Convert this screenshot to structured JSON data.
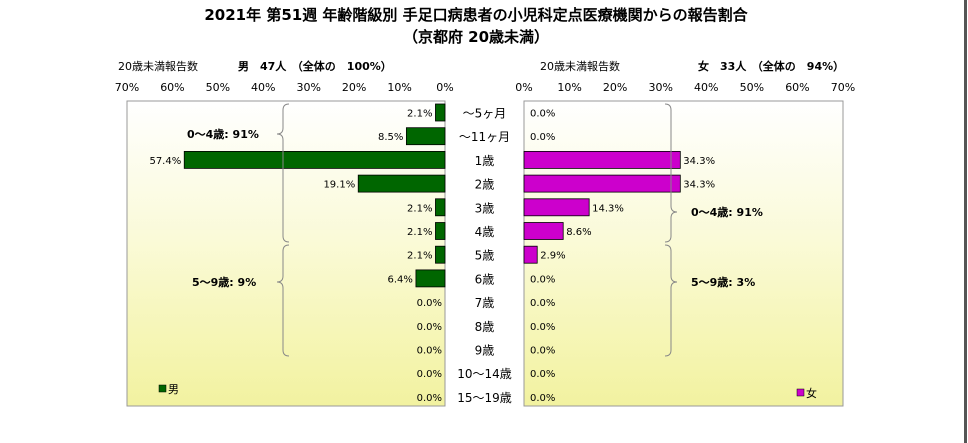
{
  "chart_data": {
    "type": "bar",
    "title": "2021年 第51週 年齢階級別 手足口病患者の小児科定点医療機関からの報告割合",
    "subtitle": "（京都府 20歳未満）",
    "categories": [
      "～5ヶ月",
      "～11ヶ月",
      "1歳",
      "2歳",
      "3歳",
      "4歳",
      "5歳",
      "6歳",
      "7歳",
      "8歳",
      "9歳",
      "10～14歳",
      "15～19歳"
    ],
    "xlim": [
      0,
      70
    ],
    "ticks": [
      "70%",
      "60%",
      "50%",
      "40%",
      "30%",
      "20%",
      "10%",
      "0%"
    ],
    "ticks_right": [
      "0%",
      "10%",
      "20%",
      "30%",
      "40%",
      "50%",
      "60%",
      "70%"
    ],
    "series": [
      {
        "name": "男",
        "color": "#006600",
        "header_label": "20歳未満報告数",
        "header_summary": "男　47人　（全体の　100%）",
        "values": [
          2.1,
          8.5,
          57.4,
          19.1,
          2.1,
          2.1,
          2.1,
          6.4,
          0.0,
          0.0,
          0.0,
          0.0,
          0.0
        ],
        "labels": [
          "2.1%",
          "8.5%",
          "57.4%",
          "19.1%",
          "2.1%",
          "2.1%",
          "2.1%",
          "6.4%",
          "0.0%",
          "0.0%",
          "0.0%",
          "0.0%",
          "0.0%"
        ],
        "group_labels": [
          "0～4歳: 91%",
          "5～9歳: 9%"
        ]
      },
      {
        "name": "女",
        "color": "#cc00cc",
        "header_label": "20歳未満報告数",
        "header_summary": "女　33人　（全体の　94%）",
        "values": [
          0.0,
          0.0,
          34.3,
          34.3,
          14.3,
          8.6,
          2.9,
          0.0,
          0.0,
          0.0,
          0.0,
          0.0,
          0.0
        ],
        "labels": [
          "0.0%",
          "0.0%",
          "34.3%",
          "34.3%",
          "14.3%",
          "8.6%",
          "2.9%",
          "0.0%",
          "0.0%",
          "0.0%",
          "0.0%",
          "0.0%",
          "0.0%"
        ],
        "group_labels": [
          "0～4歳: 91%",
          "5～9歳: 3%"
        ]
      }
    ],
    "legend": [
      "男",
      "女"
    ],
    "legend_position": "bottom-left / bottom-right",
    "grid": false
  }
}
